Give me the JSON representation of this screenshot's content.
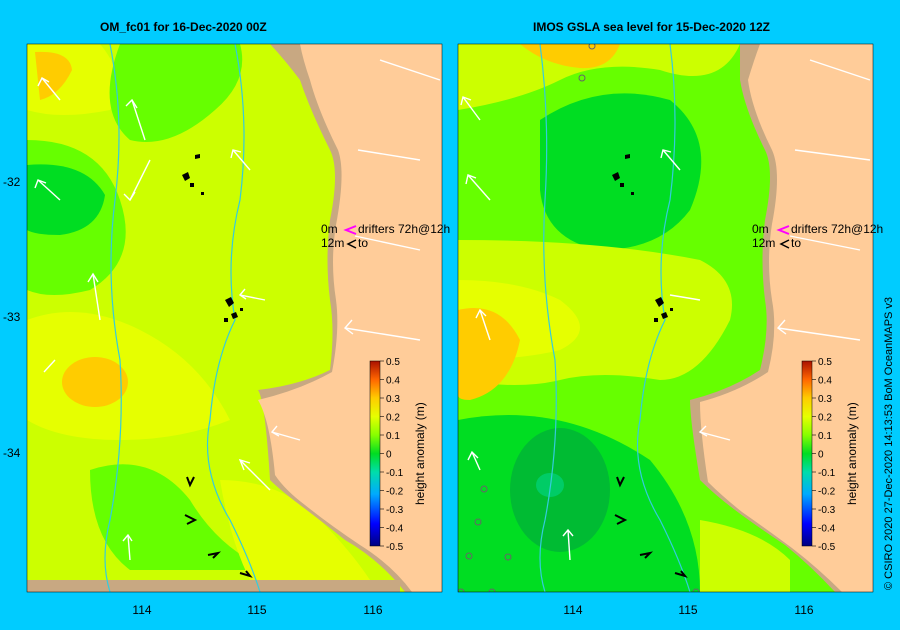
{
  "panels": [
    {
      "title": "OM_fc01  for 16-Dec-2020 00Z",
      "drifter_label_top": "0m",
      "drifter_text": "drifters 72h@12h",
      "drifter_label_bottom": "12m",
      "drifter_to": "to"
    },
    {
      "title": "IMOS  GSLA sea level   for 15-Dec-2020 12Z",
      "drifter_label_top": "0m",
      "drifter_text": "drifters 72h@12h",
      "drifter_label_bottom": "12m",
      "drifter_to": "to"
    }
  ],
  "axes": {
    "x_ticks": [
      "114",
      "115",
      "116"
    ],
    "y_ticks": [
      "-32",
      "-33",
      "-34"
    ]
  },
  "colorbar": {
    "label": "height anomaly (m)",
    "ticks": [
      "0.5",
      "0.4",
      "0.3",
      "0.2",
      "0.1",
      "0",
      "-0.1",
      "-0.2",
      "-0.3",
      "-0.4",
      "-0.5"
    ],
    "range": [
      -0.5,
      0.5
    ]
  },
  "credit": "© CSIRO 2020   27-Dec-2020 14:13:53 BoM OceanMAPS v3",
  "colors": {
    "background": "#00ccff",
    "land": "#ffcc99",
    "coastal_shelf": "#c8a882",
    "yellow_green": "#ccff00",
    "yellow": "#e6ff00",
    "light_green": "#66ff00",
    "green": "#00dd22",
    "dark_green": "#00bb33",
    "orange": "#ffaa00",
    "arrow": "#ffffff"
  }
}
